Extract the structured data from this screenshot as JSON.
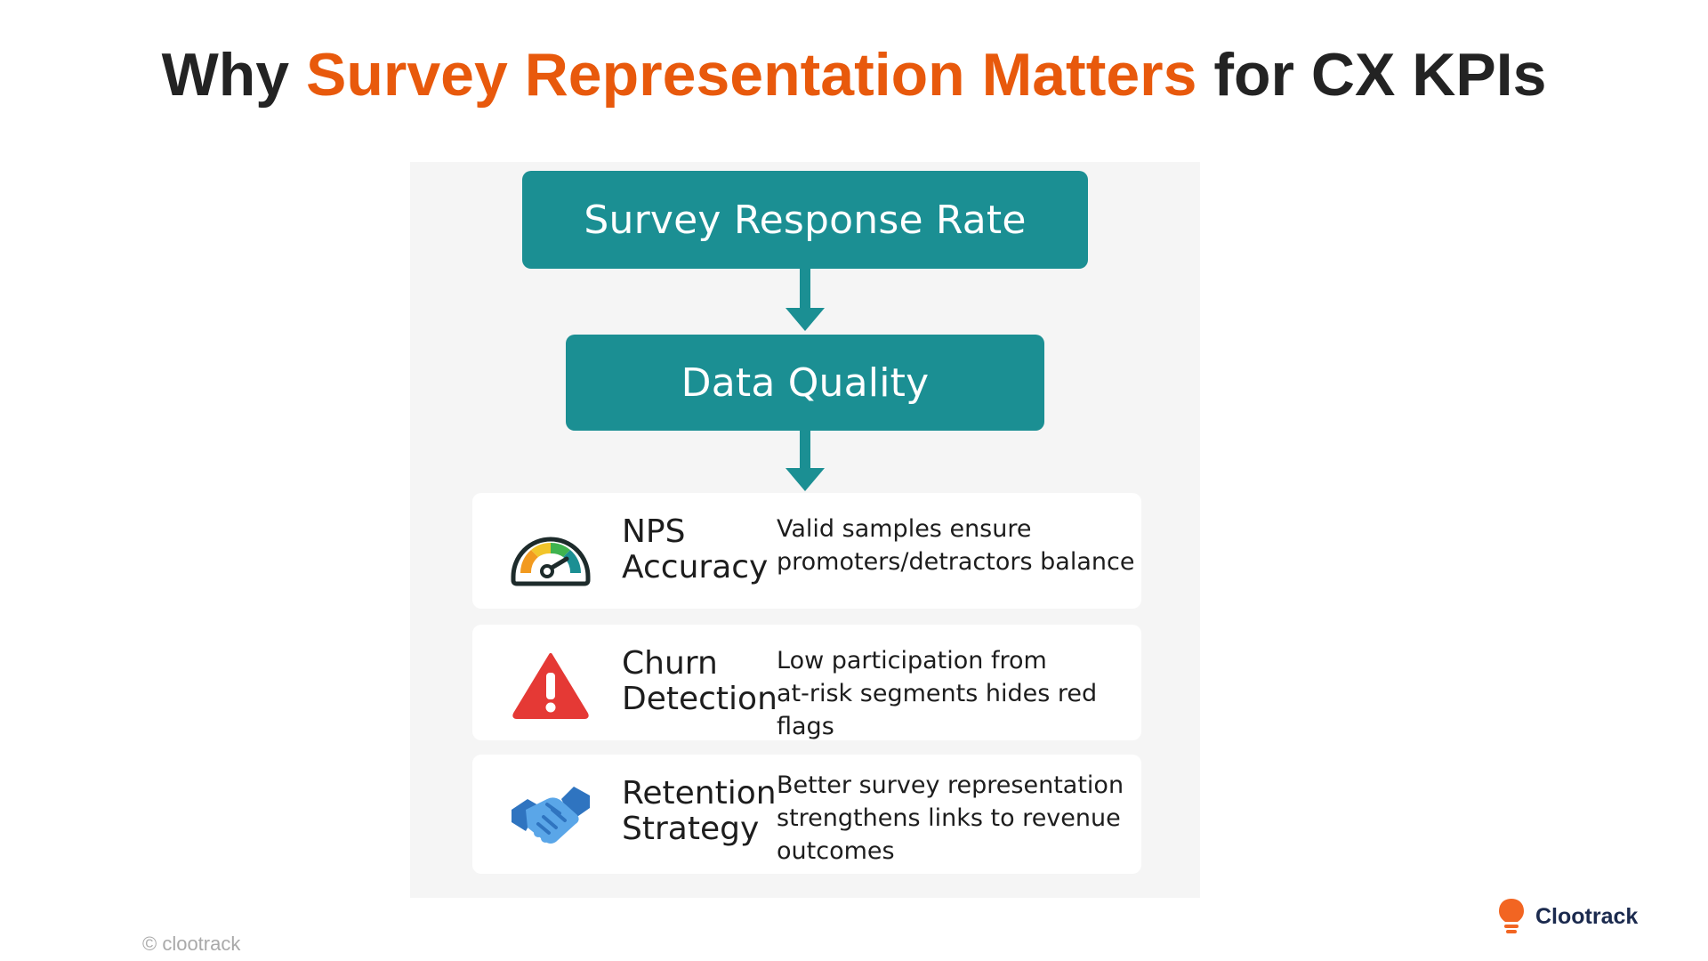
{
  "title": {
    "prefix": "Why ",
    "highlight": "Survey Representation Matters",
    "suffix": " for CX KPIs"
  },
  "flow": {
    "step1": "Survey Response Rate",
    "step2": "Data Quality"
  },
  "kpis": [
    {
      "icon": "gauge-icon",
      "name_line1": "NPS",
      "name_line2": "Accuracy",
      "desc_line1": "Valid samples ensure",
      "desc_line2": "promoters/detractors balance",
      "desc_line3": ""
    },
    {
      "icon": "warning-icon",
      "name_line1": "Churn",
      "name_line2": "Detection",
      "desc_line1": "Low participation from",
      "desc_line2": "at-risk segments hides red flags",
      "desc_line3": ""
    },
    {
      "icon": "handshake-icon",
      "name_line1": "Retention",
      "name_line2": "Strategy",
      "desc_line1": "Better survey representation",
      "desc_line2": "strengthens links to revenue",
      "desc_line3": "outcomes"
    }
  ],
  "footer": {
    "copyright": "© clootrack",
    "brand": "Clootrack"
  },
  "colors": {
    "accent": "#e8590c",
    "teal": "#1b8f93",
    "panel_bg": "#f5f5f5",
    "warning_red": "#e53935",
    "handshake_blue": "#3b8ad9"
  }
}
